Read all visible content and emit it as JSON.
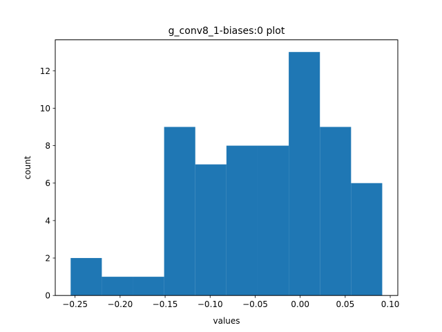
{
  "chart_data": {
    "type": "bar",
    "subtype": "histogram",
    "title": "g_conv8_1-biases:0 plot",
    "xlabel": "values",
    "ylabel": "count",
    "bin_edges": [
      -0.2549,
      -0.2203,
      -0.1857,
      -0.1511,
      -0.1165,
      -0.0819,
      -0.0473,
      -0.0127,
      0.0219,
      0.0565,
      0.0911
    ],
    "values": [
      2,
      1,
      1,
      9,
      7,
      8,
      8,
      13,
      9,
      6
    ],
    "xlim": [
      -0.272,
      0.1084
    ],
    "ylim": [
      0,
      13.65
    ],
    "xticks": [
      -0.25,
      -0.2,
      -0.15,
      -0.1,
      -0.05,
      0.0,
      0.05,
      0.1
    ],
    "xtick_labels": [
      "−0.25",
      "−0.20",
      "−0.15",
      "−0.10",
      "−0.05",
      "0.00",
      "0.05",
      "0.10"
    ],
    "yticks": [
      0,
      2,
      4,
      6,
      8,
      10,
      12
    ],
    "ytick_labels": [
      "0",
      "2",
      "4",
      "6",
      "8",
      "10",
      "12"
    ],
    "bar_color": "#1f77b4",
    "grid": false,
    "legend": "none"
  }
}
